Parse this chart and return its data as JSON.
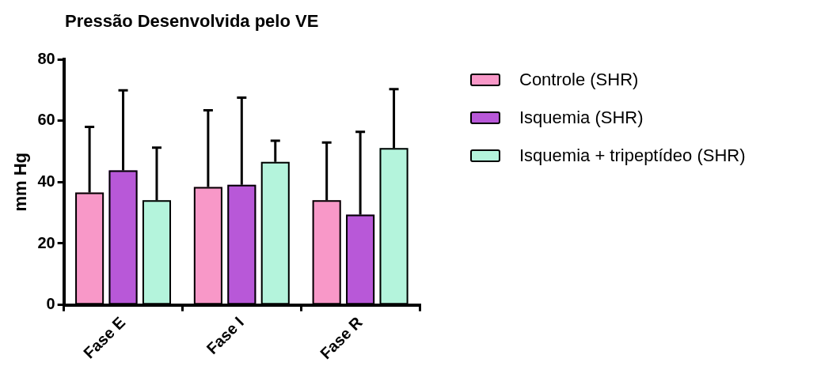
{
  "chart_data": {
    "type": "bar",
    "title": "Pressão Desenvolvida pelo VE",
    "ylabel": "mm Hg",
    "categories": [
      "Fase E",
      "Fase I",
      "Fase R"
    ],
    "series": [
      {
        "name": "Controle (SHR)",
        "color": "#f898c8",
        "values": [
          36.6,
          38.4,
          34.1
        ],
        "errors": [
          [
            36.6,
            58.0
          ],
          [
            38.4,
            63.4
          ],
          [
            34.1,
            52.9
          ]
        ]
      },
      {
        "name": "Isquemia (SHR)",
        "color": "#b858d8",
        "values": [
          43.8,
          39.1,
          29.4
        ],
        "errors": [
          [
            43.8,
            69.9
          ],
          [
            39.1,
            67.5
          ],
          [
            29.4,
            56.4
          ]
        ]
      },
      {
        "name": "Isquemia + tripeptídeo (SHR)",
        "color": "#b4f4dc",
        "values": [
          34.1,
          46.6,
          51.1
        ],
        "errors": [
          [
            34.1,
            51.2
          ],
          [
            46.6,
            53.5
          ],
          [
            51.1,
            70.3
          ]
        ]
      }
    ],
    "ylim": [
      0,
      80
    ],
    "yticks": [
      0,
      20,
      40,
      60,
      80
    ],
    "grid": false,
    "legend": "top right"
  }
}
